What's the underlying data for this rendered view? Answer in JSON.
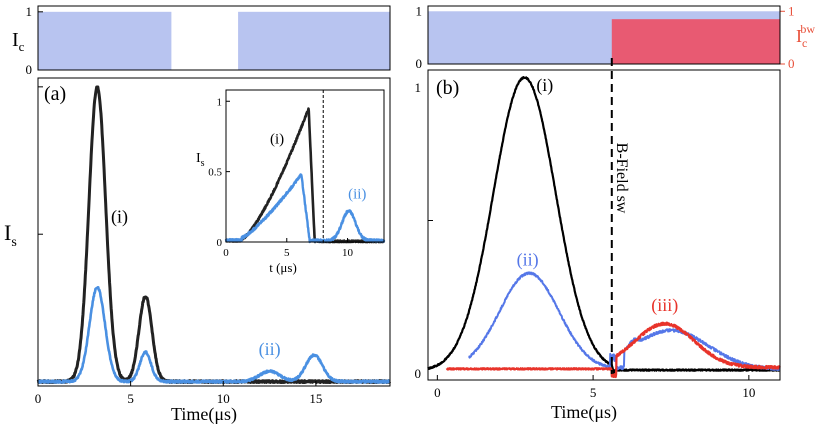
{
  "chart_data": [
    {
      "id": "panel-a-control",
      "type": "area",
      "ylabel": "I",
      "ylabel_sub": "c",
      "yticks": [
        "0",
        "1"
      ],
      "ylim": [
        0,
        1
      ],
      "xlim": [
        0,
        19
      ],
      "color": "#b8c4f0",
      "segments": [
        [
          0,
          7.2
        ],
        [
          10.8,
          19
        ]
      ]
    },
    {
      "id": "panel-a",
      "type": "line",
      "panel_label": "(a)",
      "xlabel": "Time(μs)",
      "ylabel": "I",
      "ylabel_sub": "s",
      "xlim": [
        0,
        19
      ],
      "ylim": [
        0,
        1.0
      ],
      "xticks": [
        0,
        5,
        10,
        15
      ],
      "xtick_labels": [
        "0",
        "5",
        "10",
        "15"
      ],
      "series": [
        {
          "name": "(i)",
          "color": "#222222",
          "peaks": [
            {
              "c": 3.2,
              "h": 1.0,
              "w": 0.45
            },
            {
              "c": 5.8,
              "h": 0.29,
              "w": 0.35
            }
          ]
        },
        {
          "name": "(ii)",
          "color": "#4a90e2",
          "peaks": [
            {
              "c": 3.2,
              "h": 0.32,
              "w": 0.42
            },
            {
              "c": 5.8,
              "h": 0.1,
              "w": 0.3
            },
            {
              "c": 12.5,
              "h": 0.035,
              "w": 0.55
            },
            {
              "c": 14.9,
              "h": 0.09,
              "w": 0.45
            }
          ]
        }
      ],
      "annotations": [
        {
          "text": "(i)",
          "x": 4.4,
          "y": 0.54
        },
        {
          "text": "(ii)",
          "x": 12.5,
          "y": 0.09,
          "color": "#4a90e2"
        }
      ]
    },
    {
      "id": "panel-a-inset",
      "type": "line",
      "xlabel": "t (μs)",
      "ylabel": "I",
      "ylabel_sub": "s",
      "xlim": [
        0,
        13
      ],
      "ylim": [
        0,
        1.08
      ],
      "xticks": [
        0,
        5,
        10
      ],
      "xtick_labels": [
        "0",
        "5",
        "10"
      ],
      "yticks": [
        0,
        0.5,
        1
      ],
      "ytick_labels": [
        "0",
        "0.5",
        "1"
      ],
      "vline": 8.0,
      "series": [
        {
          "name": "(i)",
          "color": "#222222"
        },
        {
          "name": "(ii)",
          "color": "#4a90e2"
        }
      ],
      "annotations": [
        {
          "text": "(i)",
          "x": 4.2,
          "y": 0.7
        },
        {
          "text": "(ii)",
          "x": 10.8,
          "y": 0.31,
          "color": "#4a90e2"
        }
      ]
    },
    {
      "id": "panel-b-control",
      "type": "area",
      "yticks_left": [
        "0",
        "1"
      ],
      "yticks_right": [
        "0",
        "1"
      ],
      "ylabel_right": "I",
      "ylabel_right_sub": "c",
      "ylabel_right_sup": "bw",
      "xlim": [
        0,
        11
      ],
      "fill_left": {
        "color": "#b8c4f0",
        "from": -0.3,
        "to": 11
      },
      "fill_right": {
        "color": "#e85a72",
        "from": 5.6,
        "to": 11,
        "level": 0.85
      },
      "right_axis_color": "#e8503a"
    },
    {
      "id": "panel-b",
      "type": "line",
      "panel_label": "(b)",
      "xlabel": "Time(μs)",
      "xlim": [
        -0.3,
        11
      ],
      "ylim": [
        0,
        1.0
      ],
      "xticks": [
        0,
        5,
        10
      ],
      "xtick_labels": [
        "0",
        "5",
        "10"
      ],
      "vline": 5.6,
      "vline_label": "B-Field sw",
      "series": [
        {
          "name": "(i)",
          "color": "#000000"
        },
        {
          "name": "(ii)",
          "color": "#5577e8"
        },
        {
          "name": "(iii)",
          "color": "#e8332a"
        }
      ],
      "annotations": [
        {
          "text": "(i)",
          "x": 3.45,
          "y": 0.93
        },
        {
          "text": "(ii)",
          "x": 2.9,
          "y": 0.35,
          "color": "#5577e8"
        },
        {
          "text": "(iii)",
          "x": 7.3,
          "y": 0.2,
          "color": "#e8332a"
        }
      ]
    }
  ]
}
